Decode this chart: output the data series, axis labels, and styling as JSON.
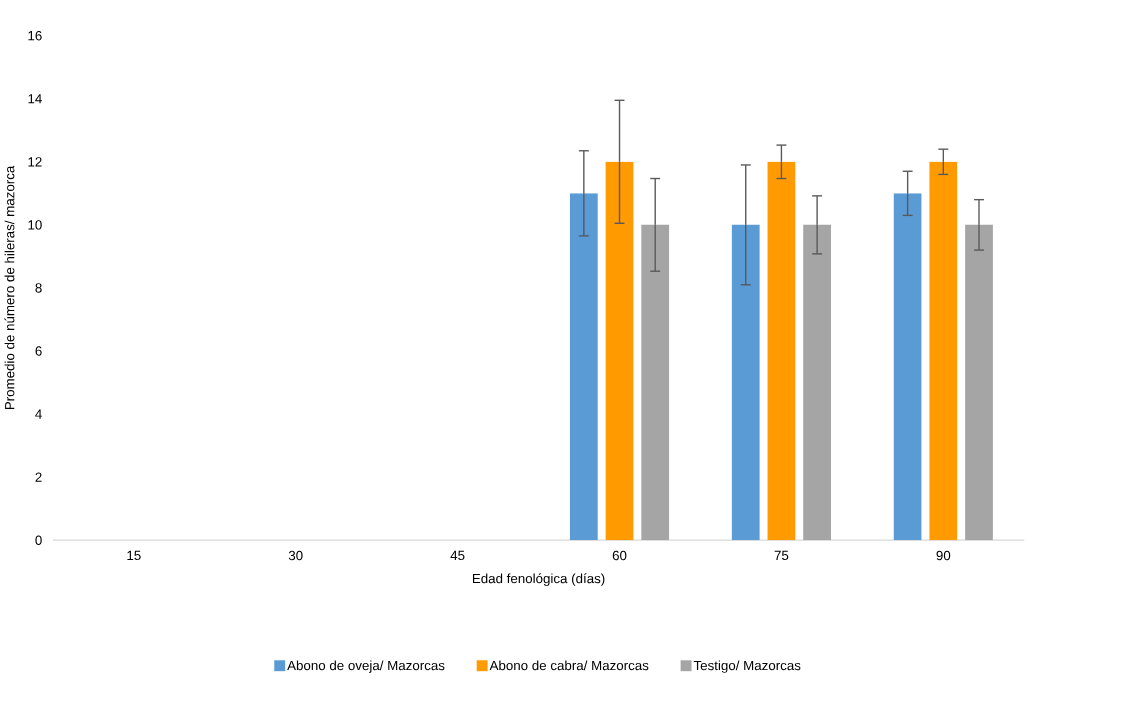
{
  "chart_data": {
    "type": "bar",
    "xlabel": "Edad fenológica (días)",
    "ylabel": "Promedio de número de hileras/ mazorca",
    "categories": [
      "15",
      "30",
      "45",
      "60",
      "75",
      "90"
    ],
    "series": [
      {
        "name": "Abono de oveja/ Mazorcas",
        "color": "#5b9bd5",
        "values": [
          0,
          0,
          0,
          11,
          10,
          11
        ],
        "errors": [
          null,
          null,
          null,
          1.35,
          1.9,
          0.7
        ]
      },
      {
        "name": "Abono de cabra/ Mazorcas",
        "color": "#ff9a00",
        "values": [
          0,
          0,
          0,
          12,
          12,
          12
        ],
        "errors": [
          null,
          null,
          null,
          1.95,
          0.53,
          0.4
        ]
      },
      {
        "name": "Testigo/ Mazorcas",
        "color": "#a5a5a5",
        "values": [
          0,
          0,
          0,
          10,
          10,
          10
        ],
        "errors": [
          null,
          null,
          null,
          1.47,
          0.92,
          0.8
        ]
      }
    ],
    "ylim": [
      0,
      16
    ],
    "yticks": [
      0,
      2,
      4,
      6,
      8,
      10,
      12,
      14,
      16
    ],
    "grid": false,
    "legend": "bottom"
  }
}
